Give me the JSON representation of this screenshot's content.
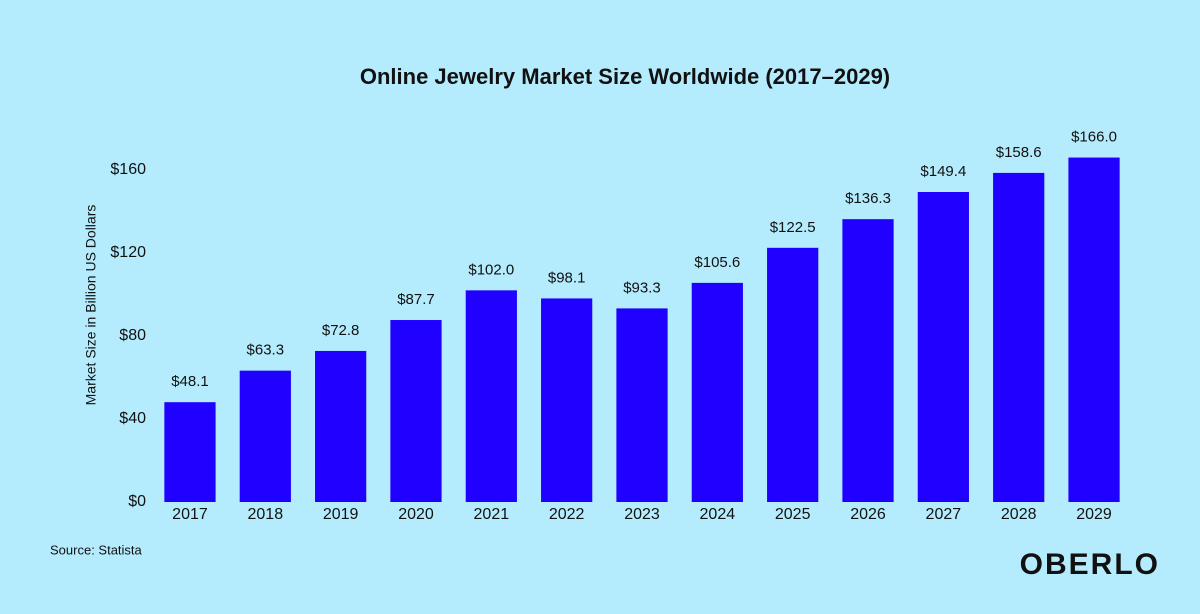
{
  "chart_data": {
    "type": "bar",
    "title": "Online Jewelry Market Size Worldwide (2017–2029)",
    "y_label": "Market Size in Billion US Dollars",
    "categories": [
      "2017",
      "2018",
      "2019",
      "2020",
      "2021",
      "2022",
      "2023",
      "2024",
      "2025",
      "2026",
      "2027",
      "2028",
      "2029"
    ],
    "values": [
      48.1,
      63.3,
      72.8,
      87.7,
      102.0,
      98.1,
      93.3,
      105.6,
      122.5,
      136.3,
      149.4,
      158.6,
      166.0
    ],
    "value_labels": [
      "$48.1",
      "$63.3",
      "$72.8",
      "$87.7",
      "$102.0",
      "$98.1",
      "$93.3",
      "$105.6",
      "$122.5",
      "$136.3",
      "$149.4",
      "$158.6",
      "$166.0"
    ],
    "color": "#2000ff",
    "ylim": [
      0,
      170
    ],
    "yticks": [
      {
        "value": 0,
        "label": "$0"
      },
      {
        "value": 40,
        "label": "$40"
      },
      {
        "value": 80,
        "label": "$80"
      },
      {
        "value": 120,
        "label": "$120"
      },
      {
        "value": 160,
        "label": "$160"
      }
    ],
    "grid": false,
    "source": "Source: Statista",
    "brand": "OBERLO"
  }
}
